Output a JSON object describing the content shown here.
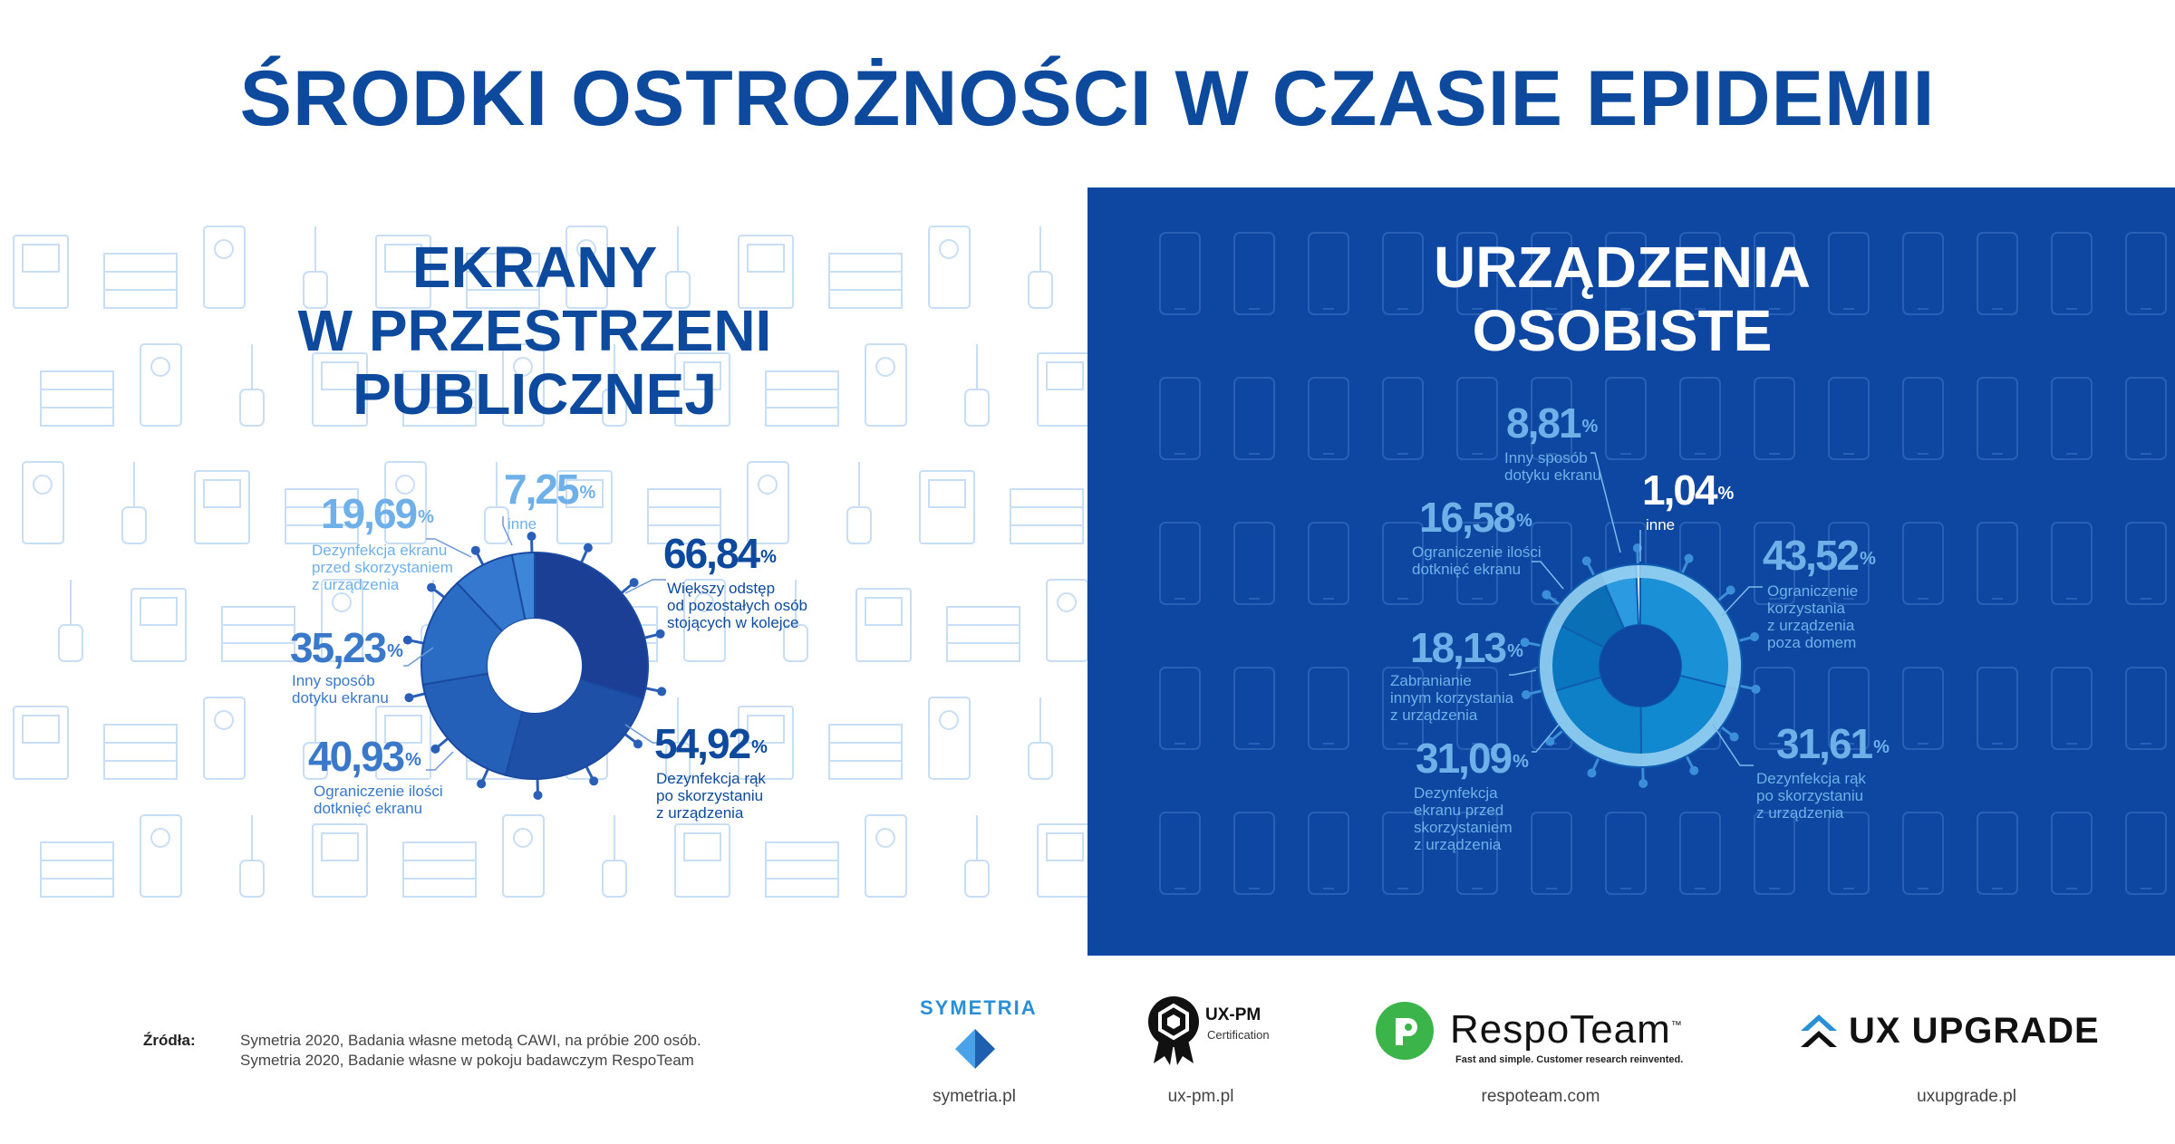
{
  "title": "ŚRODKI OSTROŻNOŚCI W CZASIE EPIDEMII",
  "left": {
    "title_lines": [
      "EKRANY",
      "W PRZESTRZENI",
      "PUBLICZNEJ"
    ],
    "items": [
      {
        "value": "66,84",
        "unit": "%",
        "label_lines": [
          "Większy odstęp",
          "od pozostałych osób",
          "stojących w kolejce"
        ]
      },
      {
        "value": "54,92",
        "unit": "%",
        "label_lines": [
          "Dezynfekcja rąk",
          "po skorzystaniu",
          "z urządzenia"
        ]
      },
      {
        "value": "40,93",
        "unit": "%",
        "label_lines": [
          "Ograniczenie ilości",
          "dotknięć ekranu"
        ]
      },
      {
        "value": "35,23",
        "unit": "%",
        "label_lines": [
          "Inny sposób",
          "dotyku ekranu"
        ]
      },
      {
        "value": "19,69",
        "unit": "%",
        "label_lines": [
          "Dezynfekcja ekranu",
          "przed skorzystaniem",
          "z urządzenia"
        ]
      },
      {
        "value": "7,25",
        "unit": "%",
        "label_lines": [
          "inne"
        ]
      }
    ]
  },
  "right": {
    "title_lines": [
      "URZĄDZENIA",
      "OSOBISTE"
    ],
    "items": [
      {
        "value": "43,52",
        "unit": "%",
        "label_lines": [
          "Ograniczenie",
          "korzystania",
          "z urządzenia",
          "poza domem"
        ]
      },
      {
        "value": "31,61",
        "unit": "%",
        "label_lines": [
          "Dezynfekcja rąk",
          "po skorzystaniu",
          "z urządzenia"
        ]
      },
      {
        "value": "31,09",
        "unit": "%",
        "label_lines": [
          "Dezynfekcja",
          "ekranu przed",
          "skorzystaniem",
          "z urządzenia"
        ]
      },
      {
        "value": "18,13",
        "unit": "%",
        "label_lines": [
          "Zabranianie",
          "innym korzystania",
          "z urządzenia"
        ]
      },
      {
        "value": "16,58",
        "unit": "%",
        "label_lines": [
          "Ograniczenie ilości",
          "dotknięć ekranu"
        ]
      },
      {
        "value": "8,81",
        "unit": "%",
        "label_lines": [
          "Inny sposób",
          "dotyku ekranu"
        ]
      },
      {
        "value": "1,04",
        "unit": "%",
        "label_lines": [
          "inne"
        ]
      }
    ]
  },
  "chart_data": [
    {
      "type": "pie",
      "title": "EKRANY W PRZESTRZENI PUBLICZNEJ",
      "categories": [
        "Większy odstęp od pozostałych osób stojących w kolejce",
        "Dezynfekcja rąk po skorzystaniu z urządzenia",
        "Ograniczenie ilości dotknięć ekranu",
        "Inny sposób dotyku ekranu",
        "Dezynfekcja ekranu przed skorzystaniem z urządzenia",
        "inne"
      ],
      "values": [
        66.84,
        54.92,
        40.93,
        35.23,
        19.69,
        7.25
      ],
      "unit": "%"
    },
    {
      "type": "pie",
      "title": "URZĄDZENIA OSOBISTE",
      "categories": [
        "Ograniczenie korzystania z urządzenia poza domem",
        "Dezynfekcja rąk po skorzystaniu z urządzenia",
        "Dezynfekcja ekranu przed skorzystaniem z urządzenia",
        "Zabranianie innym korzystania z urządzenia",
        "Ograniczenie ilości dotknięć ekranu",
        "Inny sposób dotyku ekranu",
        "inne"
      ],
      "values": [
        43.52,
        31.61,
        31.09,
        18.13,
        16.58,
        8.81,
        1.04
      ],
      "unit": "%"
    }
  ],
  "footer": {
    "sources_label": "Źródła",
    "sources_colon": ":",
    "sources": [
      "Symetria 2020, Badania własne metodą CAWI, na próbie 200 osób.",
      "Symetria 2020, Badanie własne w pokoju badawczym RespoTeam"
    ],
    "logos": [
      {
        "name": "SYMETRIA",
        "url": "symetria.pl",
        "color": "#2a8fd6"
      },
      {
        "name": "UX-PM",
        "sub": "Certification",
        "url": "ux-pm.pl",
        "color": "#111111"
      },
      {
        "name": "RespoTeam",
        "tm": "™",
        "tagline": "Fast and simple. Customer research reinvented.",
        "url": "respoteam.com",
        "color": "#3bb54a"
      },
      {
        "name": "UX UPGRADE",
        "url": "uxupgrade.pl",
        "color": "#111111"
      }
    ]
  },
  "colors": {
    "brand_dark": "#0d4a9e",
    "panel": "#0d47a1",
    "left_shades": [
      "#1a3f94",
      "#1f50a8",
      "#2560b8",
      "#2a6cc4",
      "#3479cf",
      "#3e86d8"
    ],
    "right_shades": [
      "#1a91d6",
      "#1189d0",
      "#0d80c8",
      "#0a76bf",
      "#0b6fb6",
      "#2b9ae0",
      "#e8f4fc"
    ]
  }
}
